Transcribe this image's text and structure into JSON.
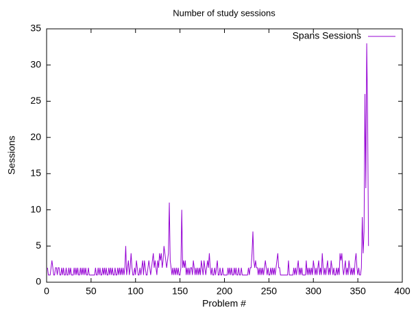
{
  "chart_data": {
    "type": "line",
    "title": "Number of study sessions",
    "xlabel": "Problem #",
    "ylabel": "Sessions",
    "legend": "top-right",
    "xlim": [
      0,
      400
    ],
    "xticks": [
      0,
      50,
      100,
      150,
      200,
      250,
      300,
      350,
      400
    ],
    "ylim": [
      0,
      35
    ],
    "yticks": [
      0,
      5,
      10,
      15,
      20,
      25,
      30,
      35
    ],
    "x": [
      1,
      2,
      3,
      4,
      5,
      6,
      7,
      8,
      9,
      10,
      11,
      12,
      13,
      14,
      15,
      16,
      17,
      18,
      19,
      20,
      21,
      22,
      23,
      24,
      25,
      26,
      27,
      28,
      29,
      30,
      31,
      32,
      33,
      34,
      35,
      36,
      37,
      38,
      39,
      40,
      41,
      42,
      43,
      44,
      45,
      46,
      47,
      48,
      49,
      50,
      51,
      52,
      53,
      54,
      55,
      56,
      57,
      58,
      59,
      60,
      61,
      62,
      63,
      64,
      65,
      66,
      67,
      68,
      69,
      70,
      71,
      72,
      73,
      74,
      75,
      76,
      77,
      78,
      79,
      80,
      81,
      82,
      83,
      84,
      85,
      86,
      87,
      88,
      89,
      90,
      91,
      92,
      93,
      94,
      95,
      96,
      97,
      98,
      99,
      100,
      101,
      102,
      103,
      104,
      105,
      106,
      107,
      108,
      109,
      110,
      111,
      112,
      113,
      114,
      115,
      116,
      117,
      118,
      119,
      120,
      121,
      122,
      123,
      124,
      125,
      126,
      127,
      128,
      129,
      130,
      131,
      132,
      133,
      134,
      135,
      136,
      137,
      138,
      139,
      140,
      141,
      142,
      143,
      144,
      145,
      146,
      147,
      148,
      149,
      150,
      151,
      152,
      153,
      154,
      155,
      156,
      157,
      158,
      159,
      160,
      161,
      162,
      163,
      164,
      165,
      166,
      167,
      168,
      169,
      170,
      171,
      172,
      173,
      174,
      175,
      176,
      177,
      178,
      179,
      180,
      181,
      182,
      183,
      184,
      185,
      186,
      187,
      188,
      189,
      190,
      191,
      192,
      193,
      194,
      195,
      196,
      197,
      198,
      199,
      200,
      201,
      202,
      203,
      204,
      205,
      206,
      207,
      208,
      209,
      210,
      211,
      212,
      213,
      214,
      215,
      216,
      217,
      218,
      219,
      220,
      221,
      222,
      223,
      224,
      225,
      226,
      227,
      228,
      229,
      230,
      231,
      232,
      233,
      234,
      235,
      236,
      237,
      238,
      239,
      240,
      241,
      242,
      243,
      244,
      245,
      246,
      247,
      248,
      249,
      250,
      251,
      252,
      253,
      254,
      255,
      256,
      257,
      258,
      259,
      260,
      261,
      262,
      263,
      264,
      265,
      266,
      267,
      268,
      269,
      270,
      271,
      272,
      273,
      274,
      275,
      276,
      277,
      278,
      279,
      280,
      281,
      282,
      283,
      284,
      285,
      286,
      287,
      288,
      289,
      290,
      291,
      292,
      293,
      294,
      295,
      296,
      297,
      298,
      299,
      300,
      301,
      302,
      303,
      304,
      305,
      306,
      307,
      308,
      309,
      310,
      311,
      312,
      313,
      314,
      315,
      316,
      317,
      318,
      319,
      320,
      321,
      322,
      323,
      324,
      325,
      326,
      327,
      328,
      329,
      330,
      331,
      332,
      333,
      334,
      335,
      336,
      337,
      338,
      339,
      340,
      341,
      342,
      343,
      344,
      345,
      346,
      347,
      348,
      349,
      350,
      351,
      352,
      353,
      354,
      355,
      356,
      357,
      358,
      359,
      360,
      361,
      362
    ],
    "series": [
      {
        "name": "Spans Sessions",
        "color": "#9400d3",
        "values": [
          2,
          1,
          1,
          1,
          2,
          3,
          2,
          1,
          1,
          2,
          2,
          1,
          2,
          2,
          1,
          1,
          2,
          1,
          2,
          1,
          1,
          2,
          1,
          1,
          2,
          1,
          2,
          1,
          1,
          1,
          2,
          1,
          2,
          1,
          2,
          1,
          1,
          2,
          1,
          2,
          1,
          2,
          1,
          2,
          1,
          1,
          2,
          1,
          1,
          1,
          1,
          1,
          1,
          1,
          2,
          1,
          1,
          2,
          1,
          2,
          1,
          1,
          2,
          1,
          2,
          1,
          2,
          1,
          1,
          2,
          1,
          2,
          1,
          2,
          1,
          1,
          2,
          1,
          1,
          2,
          1,
          2,
          1,
          2,
          1,
          2,
          1,
          2,
          5,
          1,
          2,
          3,
          1,
          2,
          4,
          2,
          1,
          1,
          2,
          1,
          3,
          2,
          1,
          1,
          2,
          1,
          2,
          3,
          1,
          3,
          2,
          1,
          1,
          2,
          3,
          2,
          1,
          2,
          3,
          4,
          2,
          3,
          2,
          1,
          3,
          2,
          4,
          3,
          4,
          2,
          3,
          5,
          4,
          3,
          2,
          3,
          4,
          11,
          3,
          2,
          1,
          2,
          1,
          2,
          1,
          2,
          1,
          2,
          1,
          1,
          2,
          10,
          2,
          3,
          2,
          3,
          1,
          2,
          1,
          2,
          1,
          2,
          2,
          1,
          3,
          2,
          1,
          2,
          1,
          2,
          1,
          2,
          1,
          3,
          2,
          1,
          3,
          2,
          1,
          2,
          3,
          2,
          4,
          2,
          1,
          2,
          1,
          1,
          2,
          1,
          2,
          3,
          1,
          1,
          2,
          1,
          1,
          2,
          1,
          1,
          1,
          1,
          1,
          2,
          1,
          2,
          1,
          2,
          1,
          1,
          2,
          1,
          2,
          1,
          1,
          2,
          1,
          1,
          2,
          1,
          1,
          1,
          1,
          1,
          1,
          1,
          2,
          1,
          2,
          2,
          4,
          7,
          3,
          2,
          3,
          2,
          2,
          1,
          2,
          1,
          2,
          1,
          2,
          1,
          2,
          3,
          2,
          1,
          2,
          1,
          1,
          2,
          1,
          2,
          1,
          2,
          1,
          2,
          3,
          4,
          2,
          2,
          1,
          1,
          1,
          1,
          1,
          1,
          1,
          1,
          1,
          3,
          1,
          1,
          1,
          1,
          1,
          2,
          1,
          2,
          1,
          2,
          3,
          1,
          2,
          1,
          2,
          1,
          1,
          1,
          1,
          3,
          1,
          2,
          1,
          2,
          1,
          2,
          1,
          3,
          2,
          1,
          2,
          1,
          2,
          3,
          1,
          2,
          1,
          4,
          2,
          1,
          2,
          1,
          2,
          3,
          1,
          2,
          1,
          3,
          2,
          1,
          2,
          1,
          1,
          2,
          1,
          2,
          1,
          4,
          3,
          4,
          2,
          1,
          2,
          3,
          1,
          2,
          1,
          3,
          2,
          1,
          2,
          1,
          2,
          1,
          3,
          4,
          2,
          1,
          2,
          1,
          1,
          2,
          9,
          4,
          7,
          26,
          13,
          33,
          23,
          5
        ]
      }
    ]
  }
}
